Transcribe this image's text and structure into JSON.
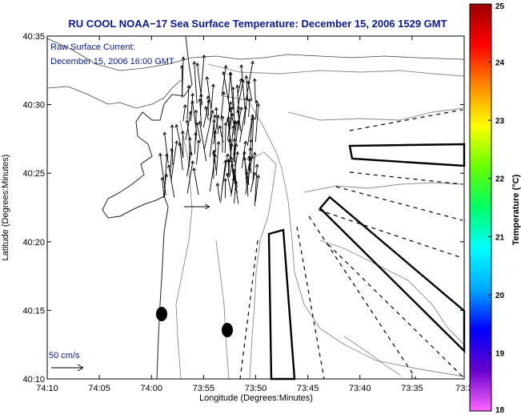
{
  "title": "RU COOL  NOAA−17  Sea Surface Temperature:  December 15, 2006 1529 GMT",
  "current_label": {
    "line1": "Raw Surface Current:",
    "line2": "December 15, 2006 16:00 GMT"
  },
  "scale_label": "50 cm/s",
  "x_axis": {
    "label": "Longitude (Degrees:Minutes)",
    "ticks": [
      "74:10",
      "74:05",
      "74:00",
      "73:55",
      "73:50",
      "73:45",
      "73:40",
      "73:35",
      "73:3"
    ]
  },
  "y_axis": {
    "label": "Latitude (Degrees:Minutes)",
    "ticks": [
      "40:35",
      "40:30",
      "40:25",
      "40:20",
      "40:15",
      "40:10"
    ]
  },
  "colorbar": {
    "label": "Temperature (°C)",
    "ticks": [
      "25",
      "24",
      "23",
      "22",
      "21",
      "20",
      "19",
      "18"
    ],
    "min": 18,
    "max": 25,
    "colors": [
      "#ff66ff",
      "#6600cc",
      "#0000ff",
      "#00aaff",
      "#00ffff",
      "#00ff66",
      "#66ff00",
      "#ffff00",
      "#ff8800",
      "#ff0000",
      "#990000"
    ]
  },
  "colors": {
    "title": "#0a1a8c",
    "land_contour": "#555555",
    "depth_contour": "#888888"
  }
}
